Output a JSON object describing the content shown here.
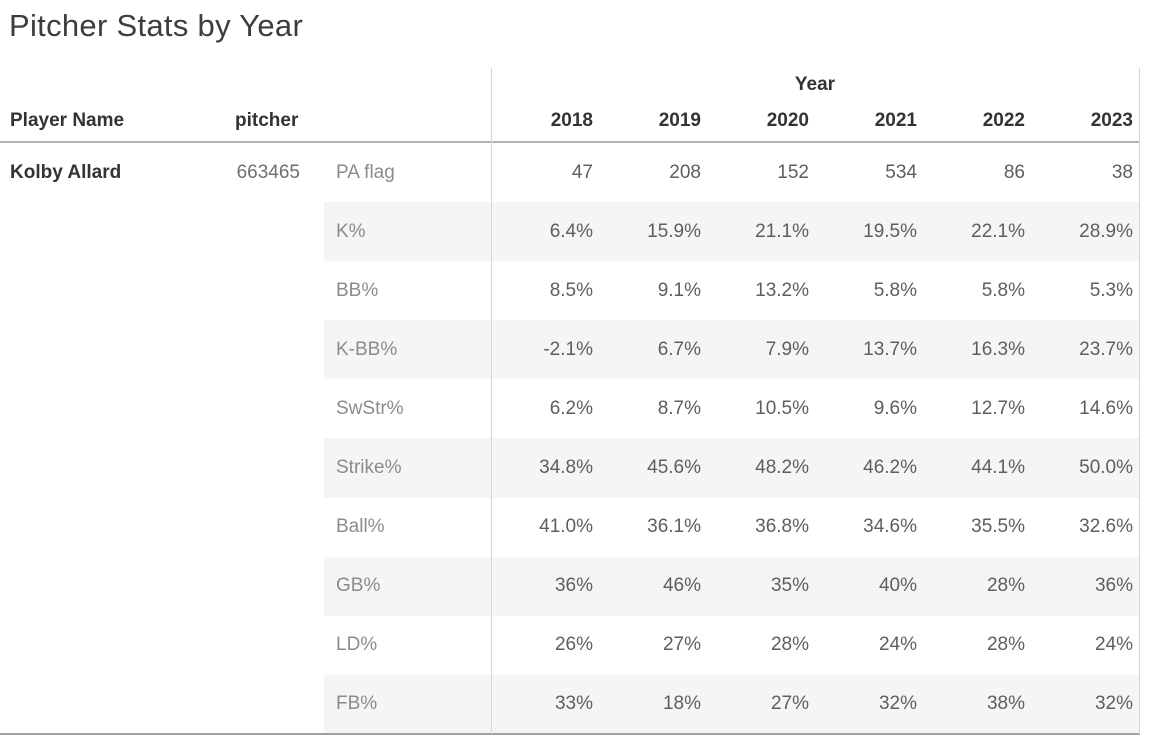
{
  "title": "Pitcher Stats by Year",
  "header": {
    "player_name": "Player Name",
    "pitcher": "pitcher",
    "year_group": "Year",
    "years": [
      "2018",
      "2019",
      "2020",
      "2021",
      "2022",
      "2023"
    ]
  },
  "player": {
    "name": "Kolby Allard",
    "id": "663465"
  },
  "rows": [
    {
      "metric": "PA flag",
      "values": [
        "47",
        "208",
        "152",
        "534",
        "86",
        "38"
      ]
    },
    {
      "metric": "K%",
      "values": [
        "6.4%",
        "15.9%",
        "21.1%",
        "19.5%",
        "22.1%",
        "28.9%"
      ]
    },
    {
      "metric": "BB%",
      "values": [
        "8.5%",
        "9.1%",
        "13.2%",
        "5.8%",
        "5.8%",
        "5.3%"
      ]
    },
    {
      "metric": "K-BB%",
      "values": [
        "-2.1%",
        "6.7%",
        "7.9%",
        "13.7%",
        "16.3%",
        "23.7%"
      ]
    },
    {
      "metric": "SwStr%",
      "values": [
        "6.2%",
        "8.7%",
        "10.5%",
        "9.6%",
        "12.7%",
        "14.6%"
      ]
    },
    {
      "metric": "Strike%",
      "values": [
        "34.8%",
        "45.6%",
        "48.2%",
        "46.2%",
        "44.1%",
        "50.0%"
      ]
    },
    {
      "metric": "Ball%",
      "values": [
        "41.0%",
        "36.1%",
        "36.8%",
        "34.6%",
        "35.5%",
        "32.6%"
      ]
    },
    {
      "metric": "GB%",
      "values": [
        "36%",
        "46%",
        "35%",
        "40%",
        "28%",
        "36%"
      ]
    },
    {
      "metric": "LD%",
      "values": [
        "26%",
        "27%",
        "28%",
        "24%",
        "28%",
        "24%"
      ]
    },
    {
      "metric": "FB%",
      "values": [
        "33%",
        "18%",
        "27%",
        "32%",
        "38%",
        "32%"
      ]
    }
  ],
  "colors": {
    "band": "#f5f5f5",
    "grid_line": "#d6d6d6",
    "header_rule": "#b3b3b3",
    "bottom_rule": "#a2a2a2",
    "header_text": "#333333",
    "metric_label_text": "#8b8b8b",
    "value_text": "#5e5e5e",
    "title_text": "#3d3d3d"
  },
  "chart_data": {
    "type": "table",
    "title": "Pitcher Stats by Year",
    "row_header_columns": [
      "Player Name",
      "pitcher"
    ],
    "column_group_label": "Year",
    "columns": [
      "2018",
      "2019",
      "2020",
      "2021",
      "2022",
      "2023"
    ],
    "player": "Kolby Allard",
    "pitcher_id": 663465,
    "metrics": [
      {
        "name": "PA flag",
        "values": [
          47,
          208,
          152,
          534,
          86,
          38
        ],
        "unit": "count"
      },
      {
        "name": "K%",
        "values": [
          6.4,
          15.9,
          21.1,
          19.5,
          22.1,
          28.9
        ],
        "unit": "%"
      },
      {
        "name": "BB%",
        "values": [
          8.5,
          9.1,
          13.2,
          5.8,
          5.8,
          5.3
        ],
        "unit": "%"
      },
      {
        "name": "K-BB%",
        "values": [
          -2.1,
          6.7,
          7.9,
          13.7,
          16.3,
          23.7
        ],
        "unit": "%"
      },
      {
        "name": "SwStr%",
        "values": [
          6.2,
          8.7,
          10.5,
          9.6,
          12.7,
          14.6
        ],
        "unit": "%"
      },
      {
        "name": "Strike%",
        "values": [
          34.8,
          45.6,
          48.2,
          46.2,
          44.1,
          50.0
        ],
        "unit": "%"
      },
      {
        "name": "Ball%",
        "values": [
          41.0,
          36.1,
          36.8,
          34.6,
          35.5,
          32.6
        ],
        "unit": "%"
      },
      {
        "name": "GB%",
        "values": [
          36,
          46,
          35,
          40,
          28,
          36
        ],
        "unit": "%"
      },
      {
        "name": "LD%",
        "values": [
          26,
          27,
          28,
          24,
          28,
          24
        ],
        "unit": "%"
      },
      {
        "name": "FB%",
        "values": [
          33,
          18,
          27,
          32,
          38,
          32
        ],
        "unit": "%"
      }
    ],
    "layout": {
      "row_banding": true,
      "banded_rows": [
        "K%",
        "K-BB%",
        "Strike%",
        "GB%",
        "FB%"
      ]
    }
  }
}
